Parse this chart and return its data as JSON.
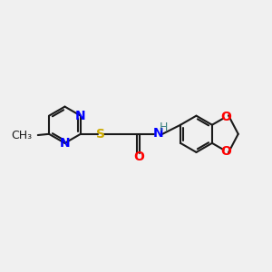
{
  "background_color": "#f0f0f0",
  "bond_color": "#1a1a1a",
  "nitrogen_color": "#0000ff",
  "sulfur_color": "#ccaa00",
  "oxygen_color": "#ff0000",
  "nh_color": "#3a8080",
  "bond_width": 1.5,
  "font_size": 10,
  "figsize": [
    3.0,
    3.0
  ],
  "dpi": 100,
  "xlim": [
    0,
    12
  ],
  "ylim": [
    0,
    12
  ]
}
